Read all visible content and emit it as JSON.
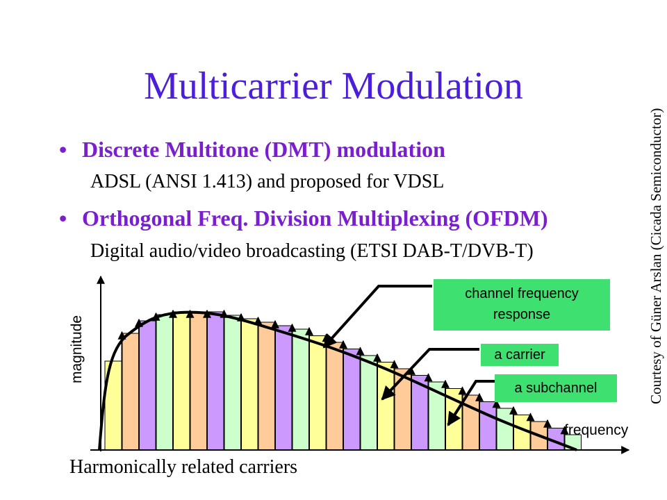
{
  "slide": {
    "title": "Multicarrier Modulation",
    "bullets": [
      {
        "heading": "Discrete Multitone (DMT) modulation",
        "detail": "ADSL (ANSI 1.413) and proposed for VDSL"
      },
      {
        "heading": "Orthogonal Freq. Division Multiplexing (OFDM)",
        "detail": "Digital audio/video broadcasting (ETSI DAB-T/DVB-T)"
      }
    ],
    "credit": "Courtesy of Güner Arslan (Cicada Semiconductor)"
  },
  "figure": {
    "y_label": "magnitude",
    "x_label": "frequency",
    "caption": "Harmonically related carriers",
    "callouts": {
      "response_line1": "channel frequency",
      "response_line2": "response",
      "carrier": "a carrier",
      "subchannel": "a subchannel"
    },
    "subchannel_count": 28,
    "subchannel_colors": [
      "#ffff99",
      "#ffcc99",
      "#cc99ff",
      "#ccffcc"
    ],
    "axis_color": "#000000",
    "callout_color": "#3ee06f",
    "title_color": "#4b1fd8",
    "bullet_color": "#7a1fd0"
  }
}
